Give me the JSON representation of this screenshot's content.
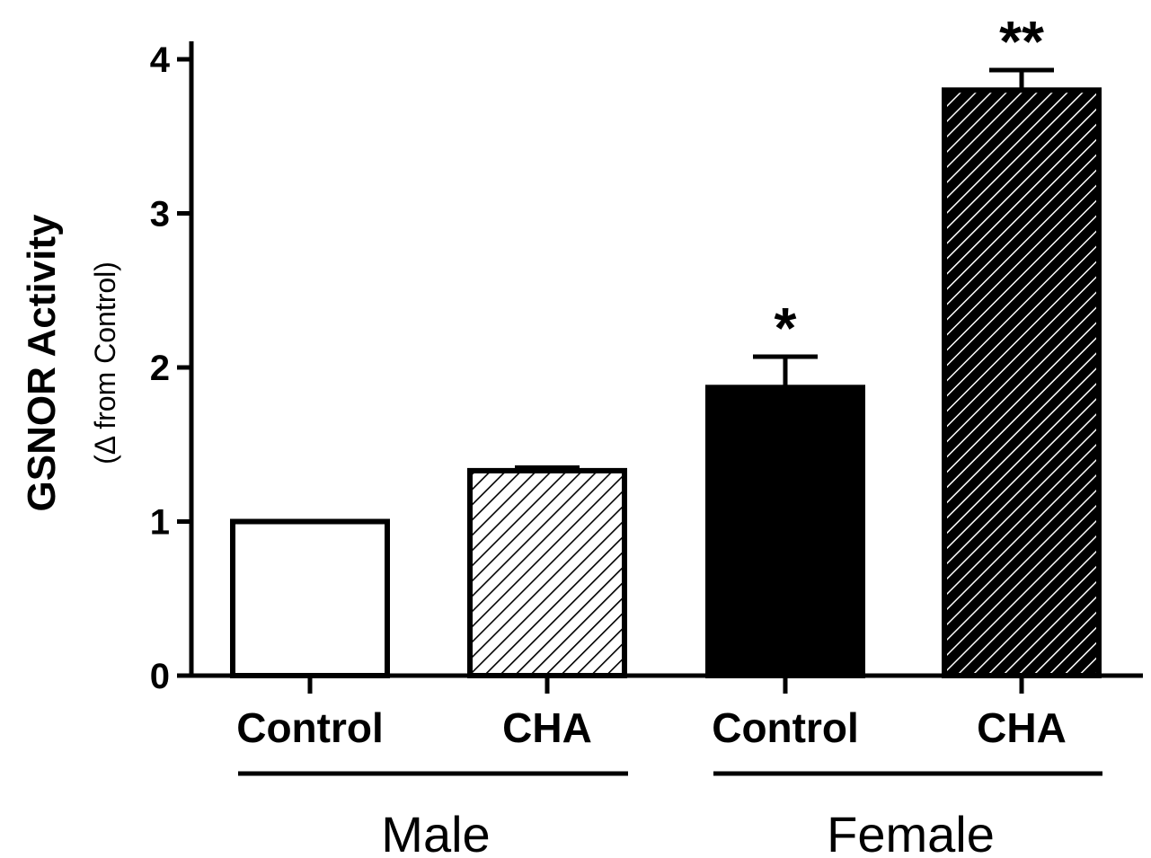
{
  "chart_data": {
    "type": "bar",
    "ylabel": "GSNOR Activity",
    "ylabel_sub": "(Δ from  Control)",
    "ylim": [
      0,
      4
    ],
    "yticks": [
      "0",
      "1",
      "2",
      "3",
      "4"
    ],
    "categories": [
      "Control",
      "CHA",
      "Control",
      "CHA"
    ],
    "groups": [
      {
        "label": "Male",
        "bars": [
          0,
          1
        ]
      },
      {
        "label": "Female",
        "bars": [
          2,
          3
        ]
      }
    ],
    "values": [
      1.0,
      1.33,
      1.87,
      3.8
    ],
    "errors": [
      0.0,
      0.02,
      0.2,
      0.13
    ],
    "fills": [
      "white",
      "hatch-white",
      "black",
      "hatch-black"
    ],
    "annotations": [
      "",
      "",
      "*",
      "**"
    ],
    "grid": false,
    "legend": "none"
  }
}
